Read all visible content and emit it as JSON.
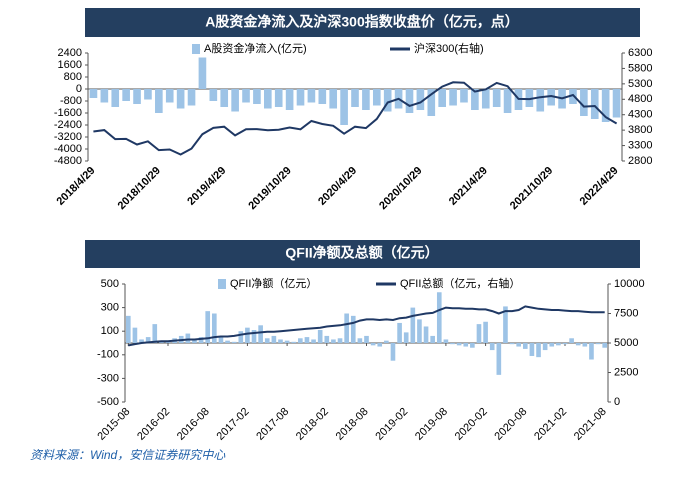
{
  "chart_data": [
    {
      "type": "bar-line",
      "title": "A股资金净流入及沪深300指数收盘价（亿元，点）",
      "categories": [
        "2018/4/29",
        null,
        null,
        null,
        null,
        null,
        "2018/10/29",
        null,
        null,
        null,
        null,
        null,
        "2019/4/29",
        null,
        null,
        null,
        null,
        null,
        "2019/10/29",
        null,
        null,
        null,
        null,
        null,
        "2020/4/29",
        null,
        null,
        null,
        null,
        null,
        "2020/10/29",
        null,
        null,
        null,
        null,
        null,
        "2021/4/29",
        null,
        null,
        null,
        null,
        null,
        "2021/10/29",
        null,
        null,
        null,
        null,
        null,
        "2022/4/29"
      ],
      "series": [
        {
          "name": "A股资金净流入(亿元)",
          "color": "#9dc3e6",
          "kind": "bar",
          "values": [
            -600,
            -900,
            -1200,
            -800,
            -1000,
            -700,
            -1600,
            -900,
            -1300,
            -1100,
            2100,
            -800,
            -1200,
            -1500,
            -900,
            -1000,
            -1300,
            -1200,
            -1400,
            -1100,
            -900,
            -1000,
            -1300,
            -2400,
            -1200,
            -1400,
            -1100,
            -1500,
            -1300,
            -1600,
            -1400,
            -1800,
            -1200,
            -1100,
            -900,
            -1400,
            -1300,
            -1200,
            -1600,
            -1400,
            -1200,
            -1500,
            -1100,
            -1300,
            -1000,
            -1800,
            -2000,
            -2200,
            -1900
          ]
        },
        {
          "name": "沪深300(右轴)",
          "color": "#1f3864",
          "kind": "line",
          "axis": "y2",
          "values": [
            3756,
            3802,
            3510,
            3517,
            3334,
            3438,
            3153,
            3172,
            3011,
            3202,
            3669,
            3872,
            3913,
            3630,
            3826,
            3835,
            3799,
            3814,
            3886,
            3828,
            4097,
            3999,
            3940,
            3686,
            3912,
            3867,
            4164,
            4695,
            4816,
            4587,
            4695,
            4960,
            5211,
            5352,
            5336,
            5048,
            5123,
            5332,
            5224,
            4811,
            4806,
            4866,
            4908,
            4832,
            4940,
            4563,
            4581,
            4223,
            4016
          ]
        }
      ],
      "ylim": [
        -4800,
        2400
      ],
      "yticks": [
        2400,
        1600,
        800,
        0,
        -800,
        -1600,
        -2400,
        -3200,
        -4000,
        -4800
      ],
      "y2lim": [
        2800,
        6300
      ],
      "y2ticks": [
        6300,
        5800,
        5300,
        4800,
        4300,
        3800,
        3300,
        2800
      ],
      "legend": "top"
    },
    {
      "type": "bar-line",
      "title": "QFII净额及总额（亿元）",
      "categories": [
        "2015-08",
        null,
        null,
        null,
        null,
        null,
        "2016-02",
        null,
        null,
        null,
        null,
        null,
        "2016-08",
        null,
        null,
        null,
        null,
        null,
        "2017-02",
        null,
        null,
        null,
        null,
        null,
        "2017-08",
        null,
        null,
        null,
        null,
        null,
        "2018-02",
        null,
        null,
        null,
        null,
        null,
        "2018-08",
        null,
        null,
        null,
        null,
        null,
        "2019-02",
        null,
        null,
        null,
        null,
        null,
        "2019-08",
        null,
        null,
        null,
        null,
        null,
        "2020-02",
        null,
        null,
        null,
        null,
        null,
        "2020-08",
        null,
        null,
        null,
        null,
        null,
        "2021-02",
        null,
        null,
        null,
        null,
        null,
        "2021-08"
      ],
      "series": [
        {
          "name": "QFII净额（亿元）",
          "color": "#9dc3e6",
          "kind": "bar",
          "values": [
            230,
            130,
            30,
            50,
            160,
            20,
            10,
            40,
            60,
            80,
            30,
            50,
            270,
            250,
            60,
            20,
            10,
            100,
            130,
            110,
            150,
            40,
            60,
            30,
            20,
            10,
            40,
            50,
            30,
            110,
            60,
            30,
            40,
            250,
            230,
            40,
            60,
            -20,
            -30,
            20,
            -150,
            170,
            90,
            300,
            200,
            140,
            60,
            430,
            30,
            -10,
            -20,
            -30,
            -40,
            160,
            180,
            -60,
            -270,
            310,
            -10,
            -30,
            -50,
            -110,
            -120,
            -60,
            -30,
            -20,
            -10,
            40,
            -20,
            -30,
            -140,
            -10,
            -40
          ]
        },
        {
          "name": "QFII总额（亿元，右轴）",
          "color": "#1f3864",
          "kind": "line",
          "axis": "y2",
          "values": [
            4800,
            4900,
            5000,
            5050,
            5100,
            5150,
            5150,
            5200,
            5250,
            5300,
            5300,
            5350,
            5400,
            5500,
            5550,
            5550,
            5600,
            5700,
            5800,
            5850,
            5900,
            5950,
            5950,
            6000,
            6050,
            6100,
            6150,
            6200,
            6250,
            6300,
            6400,
            6450,
            6500,
            6600,
            6700,
            6900,
            7000,
            7000,
            6950,
            7000,
            6950,
            7100,
            7150,
            7300,
            7400,
            7500,
            7550,
            7800,
            8000,
            7950,
            7950,
            7900,
            7900,
            7850,
            7850,
            7700,
            7500,
            7700,
            7700,
            7800,
            8100,
            8000,
            7900,
            7850,
            7800,
            7800,
            7750,
            7700,
            7700,
            7650,
            7600,
            7600,
            7600
          ]
        }
      ],
      "ylim": [
        -500,
        500
      ],
      "yticks": [
        500,
        300,
        100,
        -100,
        -300,
        -500
      ],
      "y2lim": [
        0,
        10000
      ],
      "y2ticks": [
        10000,
        7500,
        5000,
        2500,
        0
      ],
      "legend": "top"
    }
  ],
  "source": "资料来源：Wind，安信证券研究中心"
}
